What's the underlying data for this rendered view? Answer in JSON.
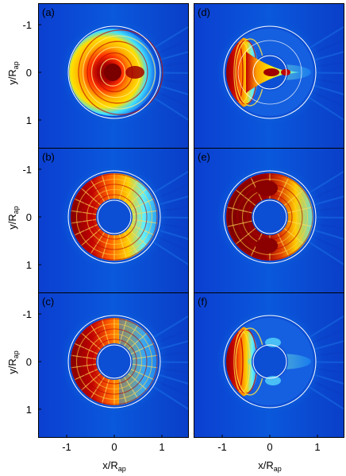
{
  "figure": {
    "panels": [
      {
        "id": "a",
        "label": "(a)",
        "inner_ring_visible": false,
        "mode": "full-disc"
      },
      {
        "id": "b",
        "label": "(b)",
        "inner_ring_visible": true,
        "mode": "annulus"
      },
      {
        "id": "c",
        "label": "(c)",
        "inner_ring_visible": true,
        "mode": "annulus-left"
      },
      {
        "id": "d",
        "label": "(d)",
        "inner_ring_visible": true,
        "mode": "crescent-spike"
      },
      {
        "id": "e",
        "label": "(e)",
        "inner_ring_visible": true,
        "mode": "annulus-blobs"
      },
      {
        "id": "f",
        "label": "(f)",
        "inner_ring_visible": true,
        "mode": "crescent"
      }
    ],
    "y_ticks": [
      "-1",
      "0",
      "1"
    ],
    "x_ticks": [
      "-1",
      "0",
      "1"
    ],
    "y_label": {
      "main": "y/R",
      "sub": "ap"
    },
    "x_label": {
      "main": "x/R",
      "sub": "ap"
    },
    "colormap": {
      "background": "#0a52d6",
      "low": "#0a34c8",
      "mid": "#28c8ff",
      "high": "#ffd400",
      "peak": "#8b0000",
      "ring": "#ffffff"
    }
  }
}
